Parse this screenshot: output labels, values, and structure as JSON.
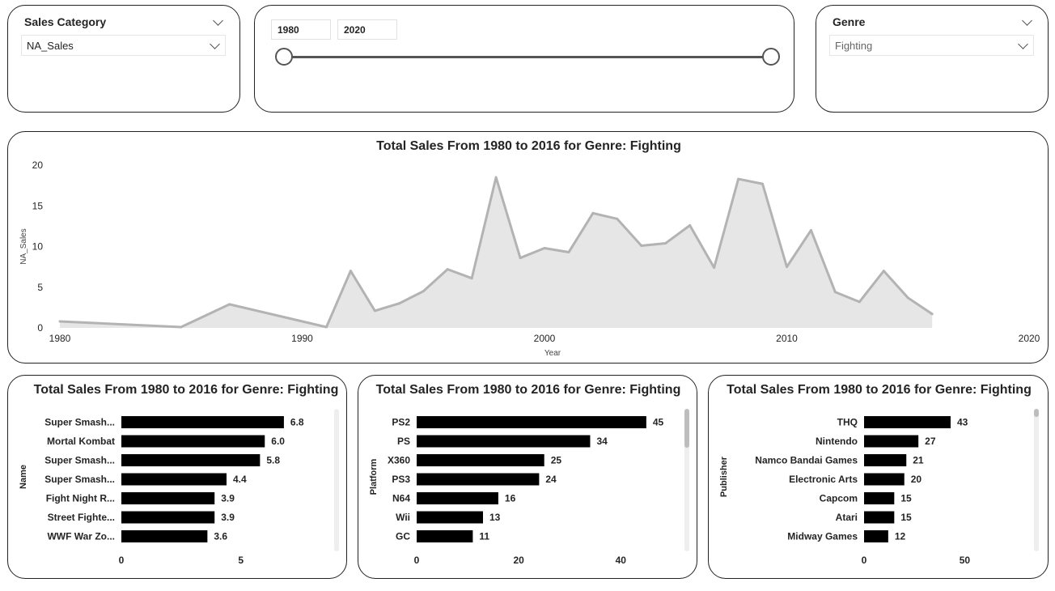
{
  "slicers": {
    "sales_category": {
      "title": "Sales Category",
      "value": "NA_Sales"
    },
    "year_range": {
      "start": "1980",
      "end": "2020"
    },
    "genre": {
      "title": "Genre",
      "value": "Fighting"
    }
  },
  "colors": {
    "area_fill": "#e6e6e6",
    "area_line": "#b3b3b3",
    "bar": "#000000",
    "border": "#222222"
  },
  "icons": [
    "chevron-down-icon",
    "slider-handle"
  ],
  "chart_data": [
    {
      "type": "area",
      "title": "Total Sales From 1980 to 2016 for Genre: Fighting",
      "xlabel": "Year",
      "ylabel": "NA_Sales",
      "xlim": [
        1980,
        2020
      ],
      "ylim": [
        0,
        20
      ],
      "x_ticks": [
        "1980",
        "1990",
        "2000",
        "2010",
        "2020"
      ],
      "y_ticks": [
        "0",
        "5",
        "10",
        "15",
        "20"
      ],
      "x": [
        1980,
        1985,
        1987,
        1991,
        1992,
        1993,
        1994,
        1995,
        1996,
        1997,
        1998,
        1999,
        2000,
        2001,
        2002,
        2003,
        2004,
        2005,
        2006,
        2007,
        2008,
        2009,
        2010,
        2011,
        2012,
        2013,
        2014,
        2015,
        2016
      ],
      "values": [
        0.8,
        0.1,
        2.9,
        0.1,
        7.0,
        2.1,
        3.0,
        4.5,
        7.2,
        6.1,
        18.5,
        8.6,
        9.8,
        9.3,
        14.1,
        13.4,
        10.1,
        10.4,
        12.6,
        7.4,
        18.3,
        17.7,
        7.5,
        12.0,
        4.4,
        3.2,
        7.0,
        3.7,
        1.7
      ]
    },
    {
      "type": "bar",
      "title": "Total Sales From 1980 to 2016 for Genre: Fighting",
      "ylabel": "Name",
      "categories": [
        "Super Smash...",
        "Mortal Kombat",
        "Super Smash...",
        "Super Smash...",
        "Fight Night R...",
        "Street Fighte...",
        "WWF War Zo..."
      ],
      "values": [
        6.8,
        6.0,
        5.8,
        4.4,
        3.9,
        3.9,
        3.6
      ],
      "value_labels": [
        "6.8",
        "6.0",
        "5.8",
        "4.4",
        "3.9",
        "3.9",
        "3.6"
      ],
      "x_ticks": [
        "0",
        "5"
      ],
      "xlim": [
        0,
        8.8
      ]
    },
    {
      "type": "bar",
      "title": "Total Sales From 1980 to 2016 for Genre: Fighting",
      "ylabel": "Platform",
      "categories": [
        "PS2",
        "PS",
        "X360",
        "PS3",
        "N64",
        "Wii",
        "GC"
      ],
      "values": [
        45,
        34,
        25,
        24,
        16,
        13,
        11
      ],
      "value_labels": [
        "45",
        "34",
        "25",
        "24",
        "16",
        "13",
        "11"
      ],
      "x_ticks": [
        "0",
        "20",
        "40"
      ],
      "xlim": [
        0,
        52
      ]
    },
    {
      "type": "bar",
      "title": "Total Sales From 1980 to 2016 for Genre: Fighting",
      "ylabel": "Publisher",
      "categories": [
        "THQ",
        "Nintendo",
        "Namco Bandai Games",
        "Electronic Arts",
        "Capcom",
        "Atari",
        "Midway Games"
      ],
      "values": [
        43,
        27,
        21,
        20,
        15,
        15,
        12
      ],
      "value_labels": [
        "43",
        "27",
        "21",
        "20",
        "15",
        "15",
        "12"
      ],
      "x_ticks": [
        "0",
        "50"
      ],
      "xlim": [
        0,
        80
      ]
    }
  ]
}
